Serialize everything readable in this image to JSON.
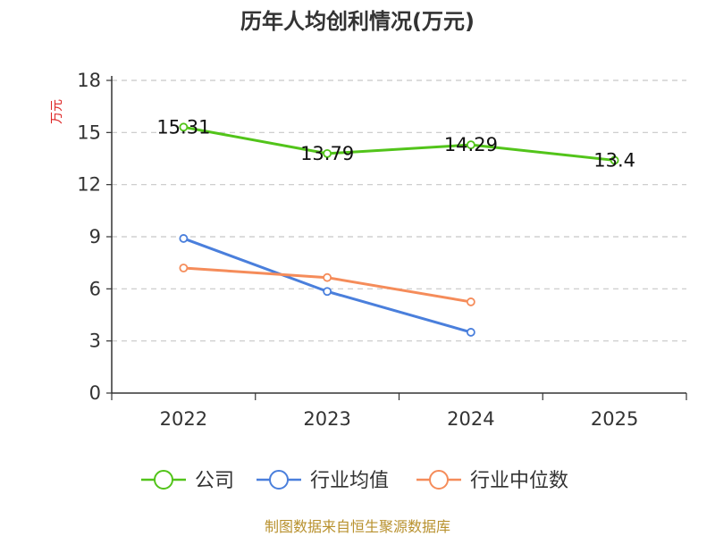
{
  "chart_data": {
    "type": "line",
    "title": "历年人均创利情况(万元)",
    "xlabel": "",
    "ylabel": "万元",
    "categories": [
      "2022",
      "2023",
      "2024",
      "2025"
    ],
    "ylim": [
      0,
      18
    ],
    "yticks": [
      0,
      3,
      6,
      9,
      12,
      15,
      18
    ],
    "grid": true,
    "legend_position": "bottom",
    "series": [
      {
        "name": "公司",
        "color": "#52c41a",
        "values": [
          15.31,
          13.79,
          14.29,
          13.4
        ],
        "labels": [
          "15.31",
          "13.79",
          "14.29",
          "13.4"
        ]
      },
      {
        "name": "行业均值",
        "color": "#4a7fdc",
        "values": [
          8.9,
          5.85,
          3.5,
          null
        ]
      },
      {
        "name": "行业中位数",
        "color": "#f58c5a",
        "values": [
          7.2,
          6.65,
          5.25,
          null
        ]
      }
    ]
  },
  "source": "制图数据来自恒生聚源数据库"
}
